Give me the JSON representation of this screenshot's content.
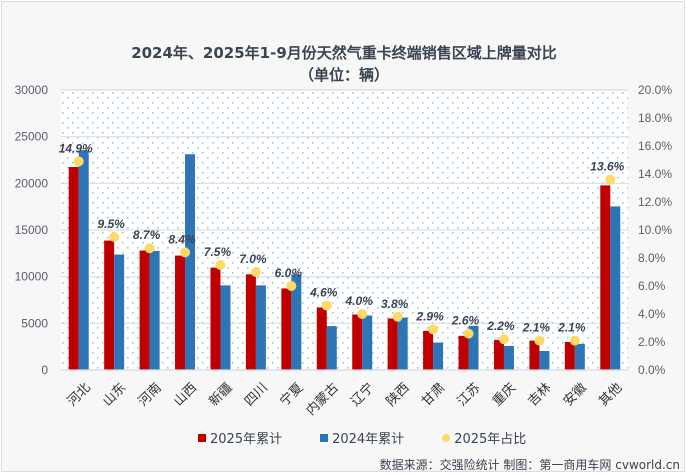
{
  "chart_data": {
    "type": "bar",
    "title": "2024年、2025年1-9月份天然气重卡终端销售区域上牌量对比",
    "subtitle": "（单位：辆）",
    "categories": [
      "河北",
      "山东",
      "河南",
      "山西",
      "新疆",
      "四川",
      "宁夏",
      "内蒙古",
      "辽宁",
      "陕西",
      "甘肃",
      "江苏",
      "重庆",
      "吉林",
      "安徽",
      "其他"
    ],
    "series": [
      {
        "name": "2025年累计",
        "type": "bar",
        "axis": "left",
        "color": "#c00000",
        "values": [
          21750,
          13870,
          12800,
          12260,
          10970,
          10250,
          8740,
          6700,
          5950,
          5520,
          4190,
          3660,
          3230,
          3150,
          3010,
          19780
        ]
      },
      {
        "name": "2024年累计",
        "type": "bar",
        "axis": "left",
        "color": "#2e75b6",
        "values": [
          23550,
          12370,
          12760,
          23120,
          9070,
          9070,
          10250,
          4700,
          5840,
          5620,
          2940,
          4730,
          2580,
          2040,
          2800,
          17530
        ]
      },
      {
        "name": "2025年占比",
        "type": "scatter",
        "axis": "right",
        "color": "#ffd966",
        "values": [
          14.9,
          9.5,
          8.7,
          8.4,
          7.5,
          7.0,
          6.0,
          4.6,
          4.0,
          3.8,
          2.9,
          2.6,
          2.2,
          2.1,
          2.1,
          13.6
        ],
        "labels": [
          "14.9%",
          "9.5%",
          "8.7%",
          "8.4%",
          "7.5%",
          "7.0%",
          "6.0%",
          "4.6%",
          "4.0%",
          "3.8%",
          "2.9%",
          "2.6%",
          "2.2%",
          "2.1%",
          "2.1%",
          "13.6%"
        ]
      }
    ],
    "ylim": [
      0,
      30000
    ],
    "yticks": [
      "0",
      "5000",
      "10000",
      "15000",
      "20000",
      "25000",
      "30000"
    ],
    "y2lim": [
      0,
      20
    ],
    "y2ticks": [
      "0.0%",
      "2.0%",
      "4.0%",
      "6.0%",
      "8.0%",
      "10.0%",
      "12.0%",
      "14.0%",
      "16.0%",
      "18.0%",
      "20.0%"
    ],
    "xlabel": "",
    "ylabel": "",
    "y2label": "",
    "grid": true,
    "legend": "bottom"
  },
  "legend": {
    "items": [
      {
        "label": "2025年累计",
        "color": "#c00000"
      },
      {
        "label": "2024年累计",
        "color": "#2e75b6"
      },
      {
        "label": "2025年占比",
        "color": "#ffd966"
      }
    ]
  },
  "footer": {
    "source": "数据来源：交强险统计  制图：第一商用车网 cvworld.cn"
  }
}
